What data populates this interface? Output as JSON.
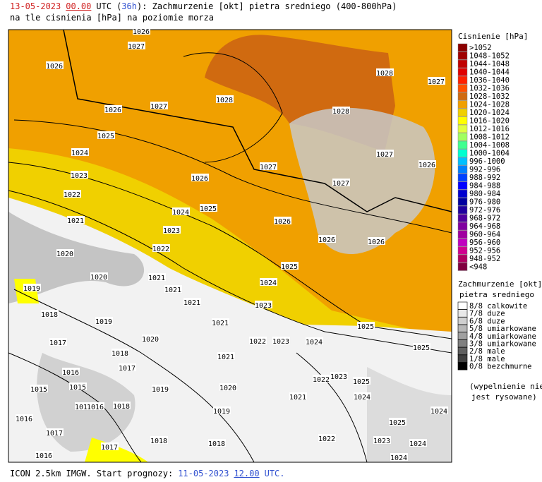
{
  "header": {
    "date": "13-05-2023",
    "hour": "00.00",
    "tz": "UTC",
    "open": "(",
    "lead": "36h",
    "rest": "): Zachmurzenie [okt] pietra sredniego (400-800hPa)",
    "line2": "na tle cisnienia [hPa] na poziomie morza"
  },
  "pressure_legend": {
    "title": "Cisnienie [hPa]",
    "items": [
      {
        "label": ">1052",
        "color": "#8b0000"
      },
      {
        "label": "1048-1052",
        "color": "#a00000"
      },
      {
        "label": "1044-1048",
        "color": "#c00000"
      },
      {
        "label": "1040-1044",
        "color": "#e00000"
      },
      {
        "label": "1036-1040",
        "color": "#ff2000"
      },
      {
        "label": "1032-1036",
        "color": "#ff5000"
      },
      {
        "label": "1028-1032",
        "color": "#d06a10"
      },
      {
        "label": "1024-1028",
        "color": "#f0a000"
      },
      {
        "label": "1020-1024",
        "color": "#f0d000"
      },
      {
        "label": "1016-1020",
        "color": "#ffff00"
      },
      {
        "label": "1012-1016",
        "color": "#e0ff40"
      },
      {
        "label": "1008-1012",
        "color": "#a0ff60"
      },
      {
        "label": "1004-1008",
        "color": "#40ff90"
      },
      {
        "label": "1000-1004",
        "color": "#00ffd0"
      },
      {
        "label": "996-1000",
        "color": "#00c0ff"
      },
      {
        "label": "992-996",
        "color": "#0080ff"
      },
      {
        "label": "988-992",
        "color": "#0040ff"
      },
      {
        "label": "984-988",
        "color": "#0000ff"
      },
      {
        "label": "980-984",
        "color": "#0000d0"
      },
      {
        "label": "976-980",
        "color": "#0000a0"
      },
      {
        "label": "972-976",
        "color": "#2000a0"
      },
      {
        "label": "968-972",
        "color": "#5000a0"
      },
      {
        "label": "964-968",
        "color": "#8000a0"
      },
      {
        "label": "960-964",
        "color": "#a000a0"
      },
      {
        "label": "956-960",
        "color": "#c000c0"
      },
      {
        "label": "952-956",
        "color": "#d00090"
      },
      {
        "label": "948-952",
        "color": "#b00060"
      },
      {
        "label": "<948",
        "color": "#800040"
      }
    ]
  },
  "cloud_legend": {
    "title1": "Zachmurzenie [okt]",
    "title2": "pietra sredniego",
    "items": [
      {
        "label": "8/8 calkowite",
        "color": "#ffffff"
      },
      {
        "label": "7/8 duze",
        "color": "#e8e8e8"
      },
      {
        "label": "6/8 duze",
        "color": "#d0d0d0"
      },
      {
        "label": "5/8 umiarkowane",
        "color": "#b8b8b8"
      },
      {
        "label": "4/8 umiarkowane",
        "color": "#a0a0a0"
      },
      {
        "label": "3/8 umiarkowane",
        "color": "#808080"
      },
      {
        "label": "2/8 male",
        "color": "#606060"
      },
      {
        "label": "1/8 male",
        "color": "#404040"
      },
      {
        "label": "0/8 bezchmurne",
        "color": "#000000"
      }
    ],
    "note1": "(wypelnienie nie",
    "note2": "jest rysowane)"
  },
  "map": {
    "isobar_labels": [
      "1026",
      "1027",
      "1026",
      "1028",
      "1027",
      "1028",
      "1026",
      "1027",
      "1028",
      "1025",
      "1024",
      "1027",
      "1026",
      "1027",
      "1023",
      "1026",
      "1027",
      "1022",
      "1025",
      "1024",
      "1021",
      "1026",
      "1023",
      "1026",
      "1026",
      "1022",
      "1020",
      "1025",
      "1020",
      "1021",
      "1024",
      "1019",
      "1021",
      "1021",
      "1023",
      "1018",
      "1019",
      "1021",
      "1025",
      "1017",
      "1020",
      "1022",
      "1023",
      "1024",
      "1025",
      "1018",
      "1021",
      "1017",
      "1016",
      "1022",
      "1023",
      "1025",
      "1015",
      "1015",
      "1019",
      "1020",
      "1021",
      "1024",
      "1017",
      "1016",
      "1018",
      "1019",
      "1024",
      "1016",
      "1025",
      "1017",
      "1018",
      "1018",
      "1022",
      "1023",
      "1024",
      "1017",
      "1016",
      "1024"
    ]
  },
  "footer": {
    "text": "ICON 2.5km IMGW. Start prognozy:",
    "date": "11-05-2023",
    "hour": "12.00",
    "tz": "UTC."
  }
}
